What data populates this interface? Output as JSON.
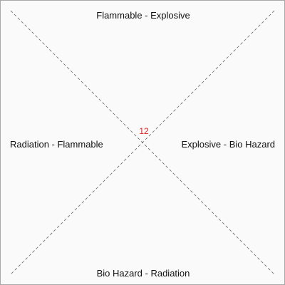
{
  "quadrants": {
    "top": "Flammable - Explosive",
    "right": "Explosive - Bio Hazard",
    "bottom": "Bio Hazard - Radiation",
    "left": "Radiation - Flammable"
  },
  "center": {
    "value": "12",
    "color": "#e02020"
  },
  "colors": {
    "background": "#fafafa",
    "border": "#a8a8a8",
    "divider": "#666666"
  }
}
